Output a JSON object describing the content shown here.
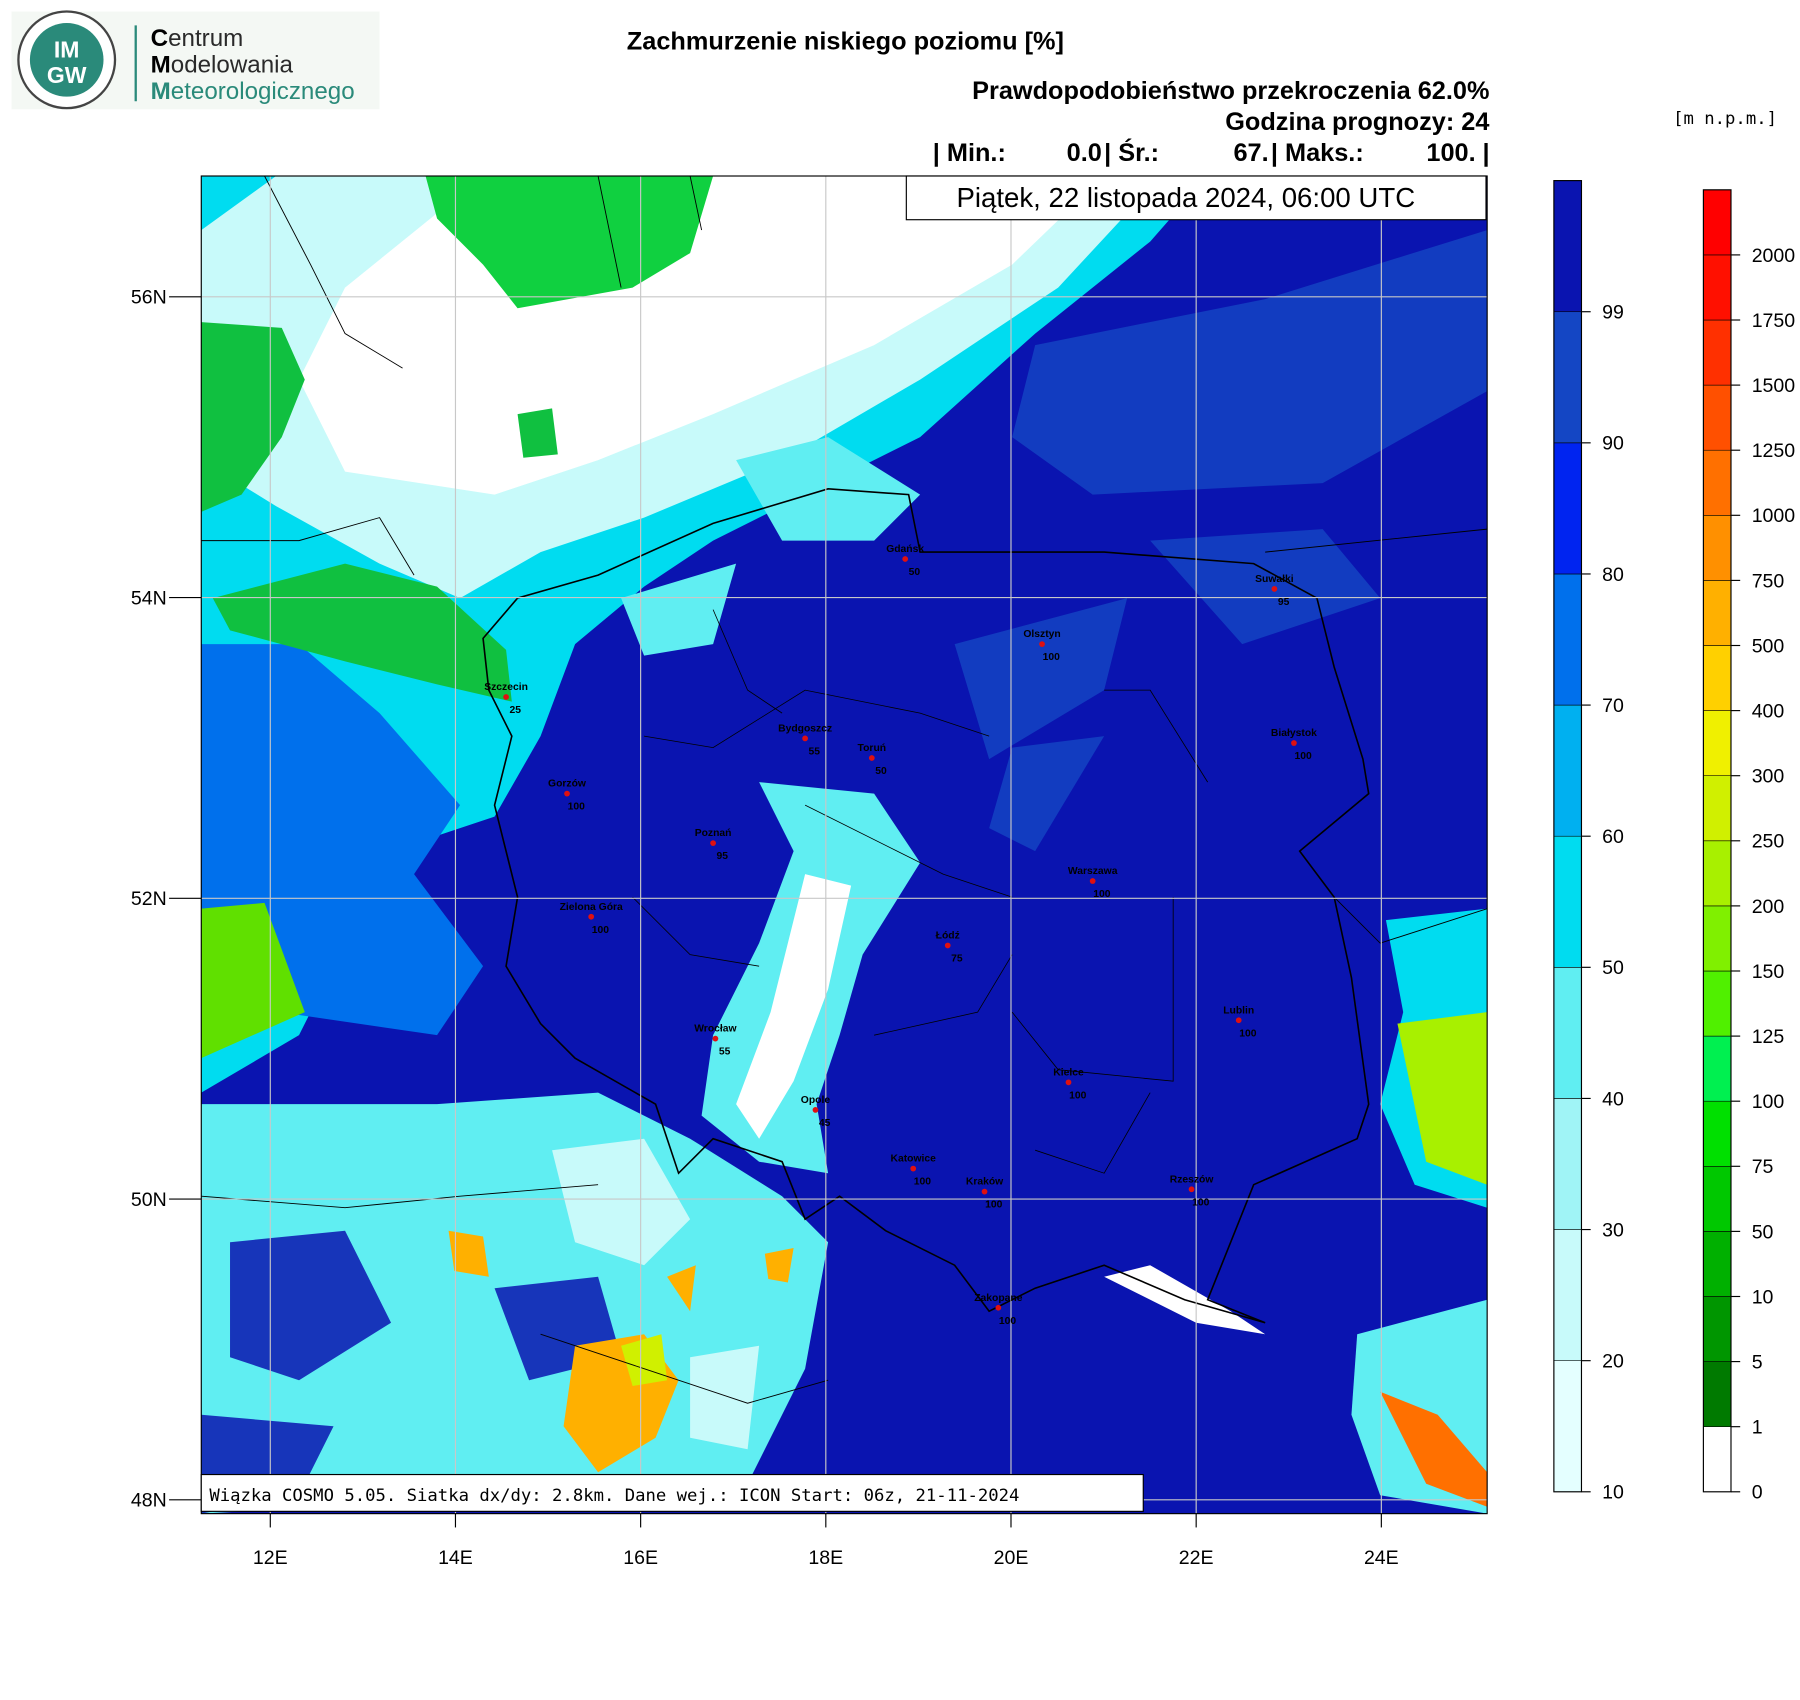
{
  "logo": {
    "abbr_top": "IM",
    "abbr_bottom": "GW",
    "lines": [
      {
        "initial": "C",
        "rest": "entrum"
      },
      {
        "initial": "M",
        "rest": "odelowania"
      },
      {
        "initial": "M",
        "rest": "eteorologicznego"
      }
    ]
  },
  "header": {
    "title": "Zachmurzenie niskiego poziomu [%]",
    "probability": "Prawdopodobieństwo przekroczenia 62.0%",
    "forecast_hour": "Godzina prognozy: 24",
    "stats": [
      {
        "label": "| Min.:",
        "value": "0.0"
      },
      {
        "label": "| Śr.:",
        "value": "67."
      },
      {
        "label": "| Maks.:",
        "value": "100."
      }
    ],
    "stats_end": "|"
  },
  "map": {
    "date": "Piątek, 22 listopada 2024, 06:00 UTC",
    "footer": "Wiązka COSMO 5.05. Siatka dx/dy: 2.8km. Dane wej.: ICON Start: 06z, 21-11-2024",
    "lon_ticks": [
      "12E",
      "14E",
      "16E",
      "18E",
      "20E",
      "22E",
      "24E"
    ],
    "lat_ticks": [
      "56N",
      "54N",
      "52N",
      "50N",
      "48N"
    ],
    "cities": [
      {
        "name": "Gdańsk",
        "value": 50
      },
      {
        "name": "Suwałki",
        "value": 95
      },
      {
        "name": "Olsztyn",
        "value": 100
      },
      {
        "name": "Szczecin",
        "value": 25
      },
      {
        "name": "Bydgoszcz",
        "value": 55
      },
      {
        "name": "Toruń",
        "value": 50
      },
      {
        "name": "Białystok",
        "value": 100
      },
      {
        "name": "Gorzów",
        "value": 100
      },
      {
        "name": "Poznań",
        "value": 95
      },
      {
        "name": "Warszawa",
        "value": 100
      },
      {
        "name": "Zielona Góra",
        "value": 100
      },
      {
        "name": "Łódź",
        "value": 75
      },
      {
        "name": "Lublin",
        "value": 100
      },
      {
        "name": "Wrocław",
        "value": 55
      },
      {
        "name": "Kielce",
        "value": 100
      },
      {
        "name": "Opole",
        "value": 45
      },
      {
        "name": "Katowice",
        "value": 100
      },
      {
        "name": "Kraków",
        "value": 100
      },
      {
        "name": "Rzeszów",
        "value": 100
      },
      {
        "name": "Zakopane",
        "value": 100
      }
    ]
  },
  "cloud_scale": {
    "ticks": [
      10,
      20,
      30,
      40,
      50,
      60,
      70,
      80,
      90,
      99
    ],
    "colors": [
      "#e4ffff",
      "#c8fafa",
      "#a0f4f6",
      "#60eef2",
      "#00dcf0",
      "#00b0f0",
      "#0070ec",
      "#0024f0",
      "#1446c4",
      "#0a14b0"
    ]
  },
  "terrain_scale": {
    "unit": "[m  n.p.m.]",
    "ticks": [
      0,
      1,
      5,
      10,
      50,
      75,
      100,
      125,
      150,
      200,
      250,
      300,
      400,
      500,
      750,
      1000,
      1250,
      1500,
      1750,
      2000
    ],
    "colors": [
      "#ffffff",
      "#007a00",
      "#009600",
      "#00b000",
      "#00c800",
      "#00e000",
      "#00f050",
      "#50f000",
      "#80f000",
      "#a8f000",
      "#d0f000",
      "#f0f000",
      "#ffd000",
      "#ffb000",
      "#ff9000",
      "#ff7000",
      "#ff5000",
      "#ff3000",
      "#ff1000",
      "#ff0000"
    ]
  }
}
